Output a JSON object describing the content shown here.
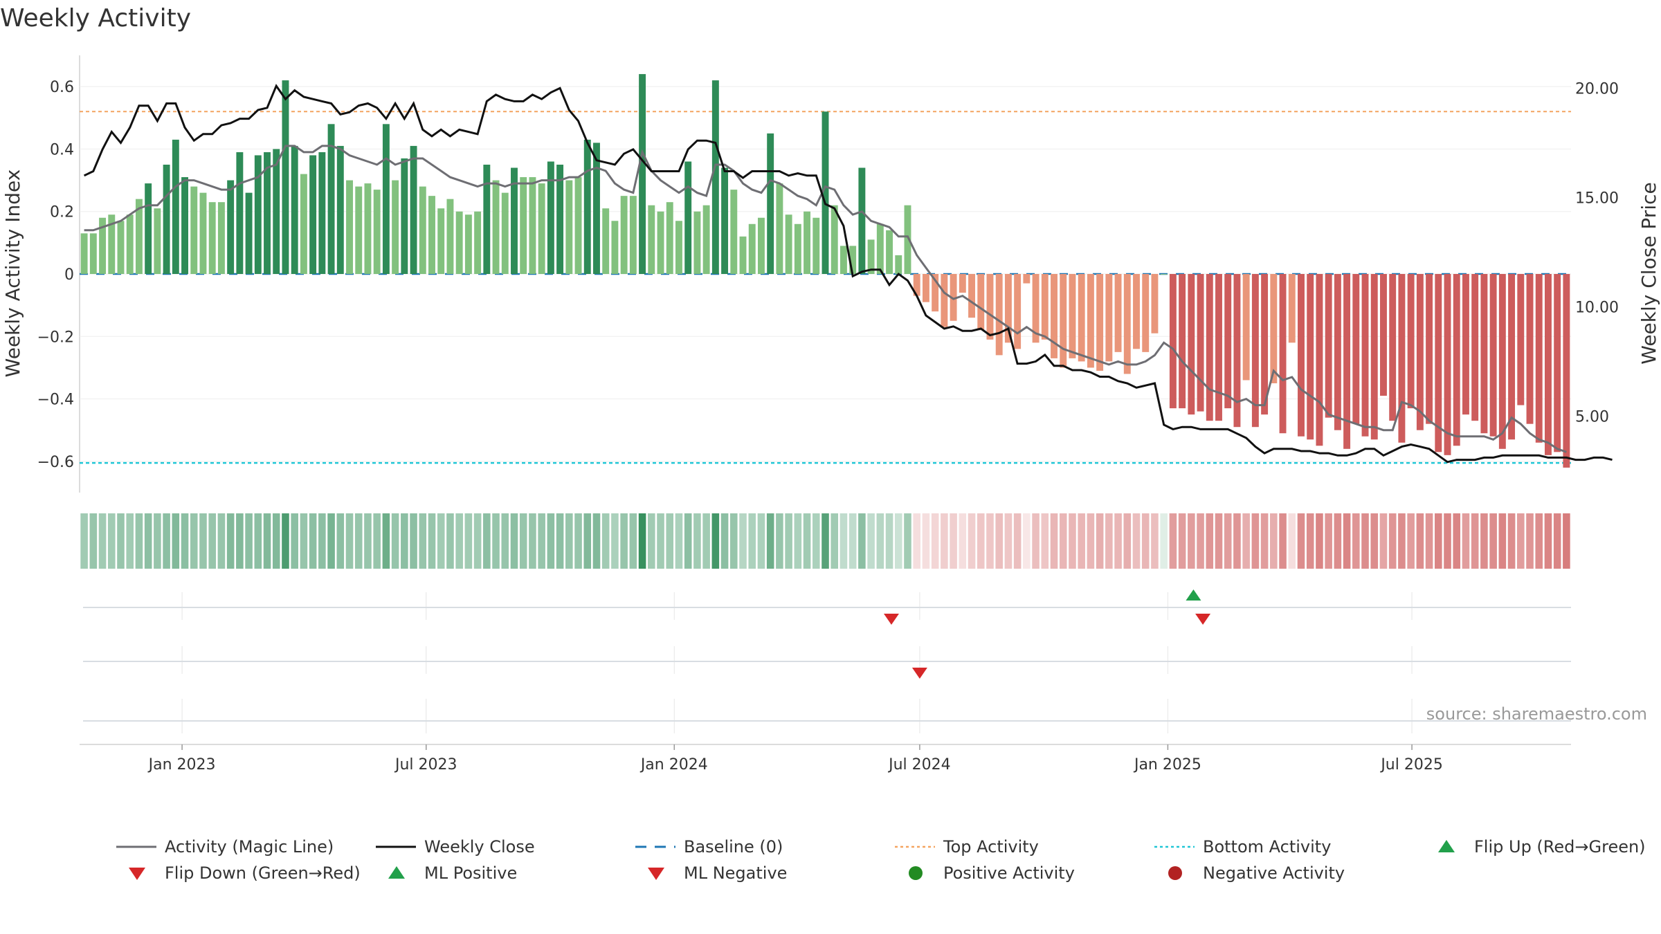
{
  "page": {
    "title": "Weekly Activity",
    "source": "source: sharemaestro.com"
  },
  "colors": {
    "strong_green": "#2e8b57",
    "light_green": "#82c17e",
    "strong_red": "#cd5c5c",
    "light_red": "#e9967a",
    "magic_line": "#6e6e73",
    "close_line": "#111111",
    "top_line": "#f4a460",
    "bottom_line": "#20c6d6",
    "baseline": "#1f77b4",
    "marker_green": "#22a04b",
    "marker_red": "#d62728",
    "dot_green": "#228b22",
    "dot_red": "#b22222"
  },
  "chart_data": {
    "type": "bar",
    "title": "Weekly Activity",
    "ylabel": "Weekly Activity Index",
    "y2label": "Weekly Close Price",
    "ylim": [
      -0.7,
      0.7
    ],
    "y2lim": [
      1.5,
      21.5
    ],
    "yticks": [
      0.6,
      0.4,
      0.2,
      0,
      -0.2,
      -0.4,
      -0.6
    ],
    "ytick_labels": [
      "0.6",
      "0.4",
      "0.2",
      "0",
      "−0.2",
      "−0.4",
      "−0.6"
    ],
    "y2ticks": [
      20,
      15,
      10,
      5
    ],
    "y2tick_labels": [
      "20.00",
      "15.00",
      "10.00",
      "5.00"
    ],
    "x_start": "2022-10-17",
    "x_end": "2025-10-27",
    "xtick_dates": [
      "2023-01-01",
      "2023-07-01",
      "2024-01-01",
      "2024-07-01",
      "2025-01-01",
      "2025-07-01"
    ],
    "xtick_labels": [
      "Jan 2023",
      "Jul 2023",
      "Jan 2024",
      "Jul 2024",
      "Jan 2025",
      "Jul 2025"
    ],
    "top_activity": 0.52,
    "bottom_activity": -0.605,
    "baseline": 0,
    "activity": [
      0.13,
      0.13,
      0.18,
      0.19,
      0.17,
      0.19,
      0.24,
      0.29,
      0.21,
      0.35,
      0.43,
      0.31,
      0.28,
      0.26,
      0.23,
      0.23,
      0.3,
      0.39,
      0.26,
      0.38,
      0.39,
      0.4,
      0.62,
      0.41,
      0.32,
      0.38,
      0.39,
      0.48,
      0.41,
      0.3,
      0.28,
      0.29,
      0.27,
      0.48,
      0.3,
      0.37,
      0.41,
      0.28,
      0.25,
      0.21,
      0.24,
      0.2,
      0.19,
      0.2,
      0.35,
      0.3,
      0.26,
      0.34,
      0.31,
      0.31,
      0.29,
      0.36,
      0.35,
      0.3,
      0.31,
      0.43,
      0.42,
      0.21,
      0.17,
      0.25,
      0.25,
      0.64,
      0.22,
      0.2,
      0.23,
      0.17,
      0.36,
      0.2,
      0.22,
      0.62,
      0.34,
      0.27,
      0.12,
      0.16,
      0.18,
      0.45,
      0.29,
      0.19,
      0.16,
      0.2,
      0.18,
      0.52,
      0.22,
      0.09,
      0.09,
      0.34,
      0.11,
      0.16,
      0.14,
      0.06,
      0.22,
      -0.07,
      -0.09,
      -0.12,
      -0.17,
      -0.15,
      -0.06,
      -0.14,
      -0.18,
      -0.21,
      -0.26,
      -0.22,
      -0.24,
      -0.03,
      -0.22,
      -0.21,
      -0.27,
      -0.3,
      -0.27,
      -0.28,
      -0.3,
      -0.31,
      -0.28,
      -0.25,
      -0.32,
      -0.24,
      -0.25,
      -0.19,
      0.0,
      -0.43,
      -0.43,
      -0.45,
      -0.44,
      -0.47,
      -0.47,
      -0.43,
      -0.49,
      -0.34,
      -0.49,
      -0.45,
      -0.35,
      -0.51,
      -0.22,
      -0.52,
      -0.53,
      -0.55,
      -0.46,
      -0.5,
      -0.56,
      -0.48,
      -0.52,
      -0.53,
      -0.39,
      -0.47,
      -0.54,
      -0.43,
      -0.5,
      -0.48,
      -0.57,
      -0.58,
      -0.55,
      -0.45,
      -0.47,
      -0.51,
      -0.52,
      -0.56,
      -0.53,
      -0.42,
      -0.48,
      -0.54,
      -0.58,
      -0.57,
      -0.62
    ],
    "magic_line": [
      0.14,
      0.14,
      0.15,
      0.16,
      0.17,
      0.19,
      0.21,
      0.22,
      0.22,
      0.25,
      0.28,
      0.3,
      0.3,
      0.29,
      0.28,
      0.27,
      0.27,
      0.29,
      0.3,
      0.31,
      0.34,
      0.35,
      0.41,
      0.41,
      0.39,
      0.39,
      0.41,
      0.41,
      0.4,
      0.38,
      0.37,
      0.36,
      0.35,
      0.37,
      0.35,
      0.36,
      0.37,
      0.37,
      0.35,
      0.33,
      0.31,
      0.3,
      0.29,
      0.28,
      0.29,
      0.29,
      0.28,
      0.29,
      0.29,
      0.29,
      0.3,
      0.3,
      0.3,
      0.31,
      0.31,
      0.33,
      0.34,
      0.33,
      0.29,
      0.27,
      0.26,
      0.39,
      0.33,
      0.3,
      0.28,
      0.26,
      0.28,
      0.26,
      0.25,
      0.35,
      0.35,
      0.33,
      0.29,
      0.27,
      0.26,
      0.3,
      0.29,
      0.27,
      0.25,
      0.24,
      0.22,
      0.28,
      0.27,
      0.22,
      0.19,
      0.2,
      0.17,
      0.16,
      0.15,
      0.12,
      0.12,
      0.06,
      0.02,
      -0.02,
      -0.06,
      -0.08,
      -0.07,
      -0.09,
      -0.11,
      -0.13,
      -0.15,
      -0.17,
      -0.19,
      -0.17,
      -0.19,
      -0.2,
      -0.22,
      -0.24,
      -0.25,
      -0.26,
      -0.27,
      -0.28,
      -0.29,
      -0.28,
      -0.29,
      -0.29,
      -0.28,
      -0.26,
      -0.22,
      -0.24,
      -0.28,
      -0.31,
      -0.34,
      -0.37,
      -0.38,
      -0.39,
      -0.41,
      -0.4,
      -0.42,
      -0.42,
      -0.31,
      -0.34,
      -0.33,
      -0.37,
      -0.39,
      -0.41,
      -0.45,
      -0.46,
      -0.47,
      -0.48,
      -0.49,
      -0.49,
      -0.5,
      -0.5,
      -0.41,
      -0.42,
      -0.44,
      -0.47,
      -0.49,
      -0.51,
      -0.52,
      -0.52,
      -0.52,
      -0.52,
      -0.53,
      -0.51,
      -0.46,
      -0.48,
      -0.51,
      -0.53,
      -0.54,
      -0.56,
      -0.57
    ],
    "weekly_close": [
      16.0,
      16.2,
      17.2,
      18.0,
      17.5,
      18.2,
      19.2,
      19.2,
      18.5,
      19.3,
      19.3,
      18.2,
      17.6,
      17.9,
      17.9,
      18.3,
      18.4,
      18.6,
      18.6,
      19.0,
      19.1,
      20.1,
      19.5,
      19.9,
      19.6,
      19.5,
      19.4,
      19.3,
      18.8,
      18.9,
      19.2,
      19.3,
      19.1,
      18.6,
      19.3,
      18.6,
      19.3,
      18.1,
      17.8,
      18.1,
      17.8,
      18.1,
      18.0,
      17.9,
      19.4,
      19.7,
      19.5,
      19.4,
      19.4,
      19.7,
      19.5,
      19.8,
      20.0,
      19.0,
      18.5,
      17.5,
      16.7,
      16.6,
      16.5,
      17.0,
      17.2,
      16.7,
      16.2,
      16.2,
      16.2,
      16.2,
      17.2,
      17.6,
      17.6,
      17.5,
      16.2,
      16.2,
      15.9,
      16.2,
      16.2,
      16.2,
      16.2,
      16.0,
      16.1,
      16.0,
      16.0,
      14.7,
      14.5,
      13.7,
      11.4,
      11.6,
      11.7,
      11.7,
      11.0,
      11.5,
      11.2,
      10.5,
      9.6,
      9.3,
      9.0,
      9.1,
      8.9,
      8.9,
      9.0,
      8.7,
      8.8,
      9.0,
      7.4,
      7.4,
      7.5,
      7.8,
      7.3,
      7.3,
      7.1,
      7.1,
      7.0,
      6.8,
      6.8,
      6.6,
      6.5,
      6.3,
      6.4,
      6.5,
      4.6,
      4.4,
      4.5,
      4.5,
      4.4,
      4.4,
      4.4,
      4.4,
      4.2,
      4.0,
      3.6,
      3.3,
      3.5,
      3.5,
      3.5,
      3.4,
      3.4,
      3.3,
      3.3,
      3.2,
      3.2,
      3.3,
      3.5,
      3.5,
      3.2,
      3.4,
      3.6,
      3.7,
      3.6,
      3.5,
      3.2,
      2.9,
      3.0,
      3.0,
      3.0,
      3.1,
      3.1,
      3.2,
      3.2,
      3.2,
      3.2,
      3.2,
      3.1,
      3.1,
      3.1,
      3.0,
      3.0,
      3.1,
      3.1,
      3.0
    ],
    "ribbon_shades": [
      0.45,
      0.5,
      0.45,
      0.45,
      0.5,
      0.45,
      0.5,
      0.55,
      0.5,
      0.55,
      0.6,
      0.55,
      0.5,
      0.5,
      0.5,
      0.5,
      0.6,
      0.6,
      0.55,
      0.55,
      0.6,
      0.6,
      0.85,
      0.55,
      0.5,
      0.55,
      0.55,
      0.65,
      0.55,
      0.5,
      0.5,
      0.5,
      0.5,
      0.7,
      0.5,
      0.55,
      0.55,
      0.5,
      0.5,
      0.45,
      0.5,
      0.45,
      0.45,
      0.45,
      0.55,
      0.5,
      0.5,
      0.55,
      0.5,
      0.5,
      0.5,
      0.55,
      0.55,
      0.5,
      0.5,
      0.6,
      0.6,
      0.45,
      0.4,
      0.5,
      0.5,
      0.95,
      0.45,
      0.45,
      0.45,
      0.4,
      0.55,
      0.45,
      0.45,
      0.9,
      0.55,
      0.5,
      0.35,
      0.4,
      0.4,
      0.7,
      0.5,
      0.45,
      0.4,
      0.45,
      0.4,
      0.8,
      0.45,
      0.3,
      0.3,
      0.55,
      0.3,
      0.35,
      0.35,
      0.25,
      0.45,
      0.2,
      0.2,
      0.25,
      0.3,
      0.3,
      0.2,
      0.3,
      0.35,
      0.35,
      0.4,
      0.35,
      0.4,
      0.15,
      0.4,
      0.35,
      0.45,
      0.45,
      0.45,
      0.45,
      0.45,
      0.5,
      0.45,
      0.45,
      0.5,
      0.4,
      0.45,
      0.4,
      0.15,
      0.6,
      0.6,
      0.6,
      0.6,
      0.65,
      0.65,
      0.6,
      0.65,
      0.5,
      0.65,
      0.6,
      0.5,
      0.7,
      0.2,
      0.7,
      0.7,
      0.75,
      0.65,
      0.7,
      0.75,
      0.65,
      0.7,
      0.7,
      0.55,
      0.65,
      0.7,
      0.6,
      0.7,
      0.65,
      0.75,
      0.75,
      0.75,
      0.6,
      0.65,
      0.7,
      0.7,
      0.75,
      0.7,
      0.6,
      0.65,
      0.7,
      0.75,
      0.75,
      0.8
    ],
    "markers": {
      "row1": [
        {
          "date": "2024-06-10",
          "type": "down"
        },
        {
          "date": "2025-01-20",
          "type": "up"
        },
        {
          "date": "2025-01-27",
          "type": "down"
        }
      ],
      "row2": [
        {
          "date": "2024-07-01",
          "type": "down"
        }
      ],
      "row3": []
    },
    "legend": [
      {
        "label": "Activity (Magic Line)",
        "kind": "line-gray"
      },
      {
        "label": "Weekly Close",
        "kind": "line-black"
      },
      {
        "label": "Baseline (0)",
        "kind": "dash-blue"
      },
      {
        "label": "Top Activity",
        "kind": "dot-orange"
      },
      {
        "label": "Bottom Activity",
        "kind": "dot-cyan"
      },
      {
        "label": "Flip Up (Red→Green)",
        "kind": "tri-up-green"
      },
      {
        "label": "Flip Down (Green→Red)",
        "kind": "tri-down-red"
      },
      {
        "label": "ML Positive",
        "kind": "tri-up-green"
      },
      {
        "label": "ML Negative",
        "kind": "tri-down-red"
      },
      {
        "label": "Positive Activity",
        "kind": "circle-green"
      },
      {
        "label": "Negative Activity",
        "kind": "circle-red"
      }
    ]
  }
}
